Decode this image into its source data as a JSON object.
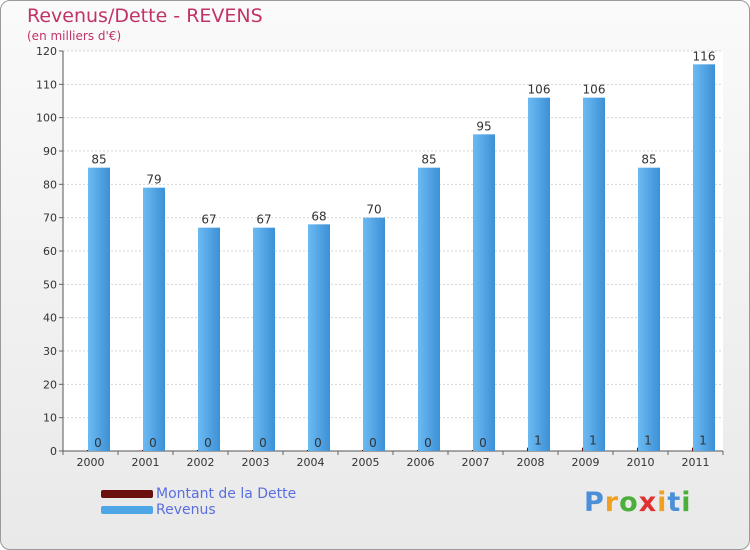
{
  "chart_data": {
    "type": "bar",
    "title": "Revenus/Dette - REVENS",
    "subtitle": "(en milliers d'€)",
    "categories": [
      "2000",
      "2001",
      "2002",
      "2003",
      "2004",
      "2005",
      "2006",
      "2007",
      "2008",
      "2009",
      "2010",
      "2011"
    ],
    "series": [
      {
        "name": "Montant de la Dette",
        "color": "#6b0f0f",
        "values": [
          0,
          0,
          0,
          0,
          0,
          0,
          0,
          0,
          1,
          1,
          1,
          1
        ]
      },
      {
        "name": "Revenus",
        "color": "#4ea6e6",
        "values": [
          85,
          79,
          67,
          67,
          68,
          70,
          85,
          95,
          106,
          106,
          85,
          116
        ]
      }
    ],
    "ylim": [
      0,
      120
    ],
    "yticks": [
      0,
      10,
      20,
      30,
      40,
      50,
      60,
      70,
      80,
      90,
      100,
      110,
      120
    ],
    "grid": true,
    "legend": "bottom-left"
  },
  "logo": {
    "p": "P",
    "r": "r",
    "o": "o",
    "x": "x",
    "i": "i",
    "t": "t",
    "i2": "i"
  }
}
